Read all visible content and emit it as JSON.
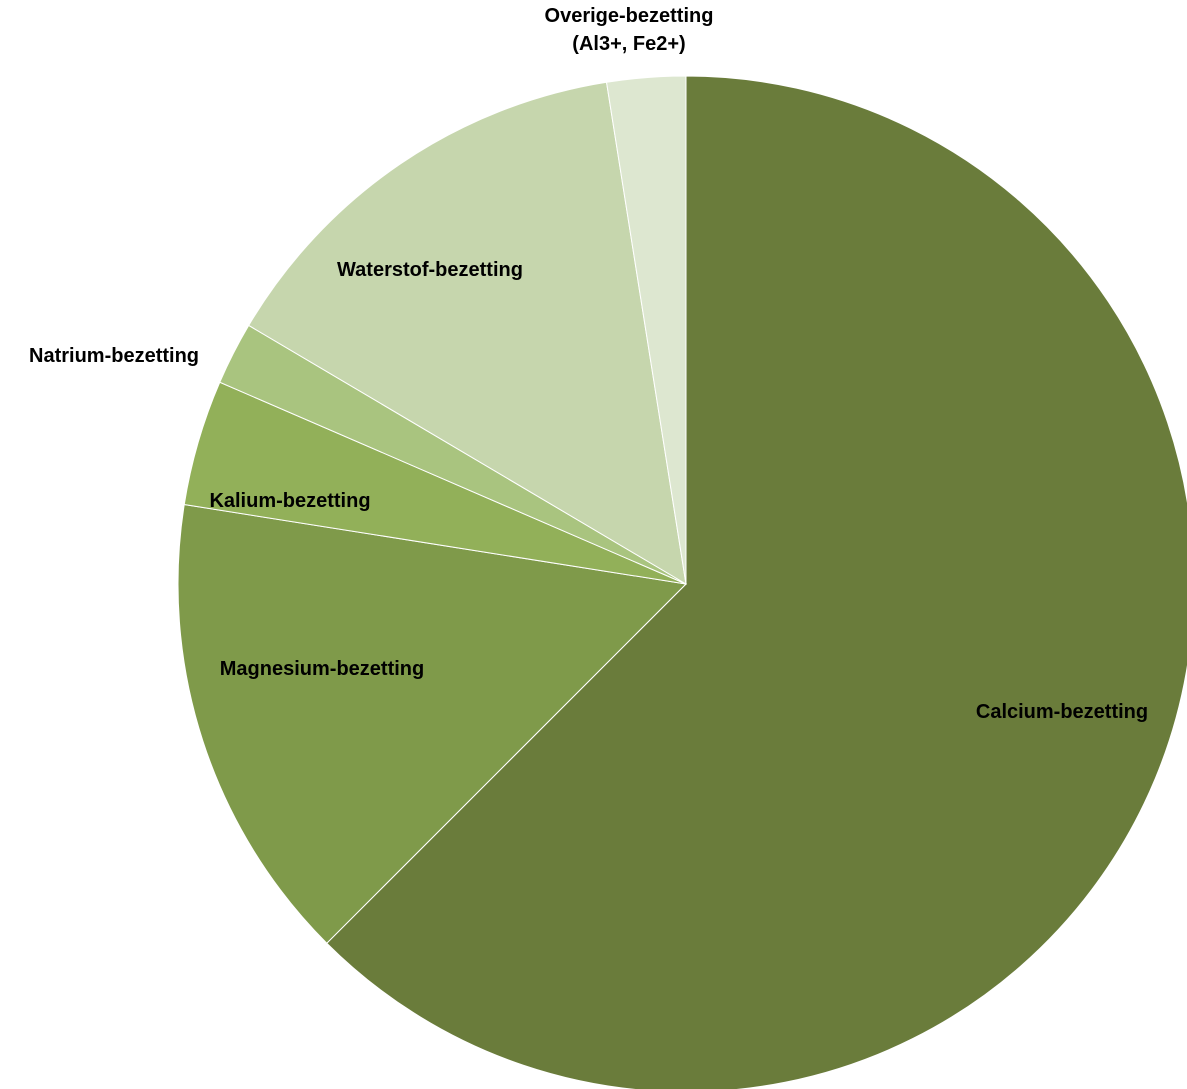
{
  "chart_data": {
    "type": "pie",
    "title": "",
    "start_angle_deg": 0,
    "direction": "clockwise",
    "legend": "none",
    "slices": [
      {
        "label": "Calcium-bezetting",
        "value": 62.5,
        "color": "#6a7c3b"
      },
      {
        "label": "Magnesium-bezetting",
        "value": 15.0,
        "color": "#7f9a4a"
      },
      {
        "label": "Kalium-bezetting",
        "value": 4.0,
        "color": "#92b059"
      },
      {
        "label": "Natrium-bezetting",
        "value": 2.0,
        "color": "#a9c47f"
      },
      {
        "label": "Waterstof-bezetting",
        "value": 14.0,
        "color": "#c6d6ad"
      },
      {
        "label": "Overige-bezetting (Al3+, Fe2+)",
        "value": 2.5,
        "color": "#dde7d0"
      }
    ]
  }
}
